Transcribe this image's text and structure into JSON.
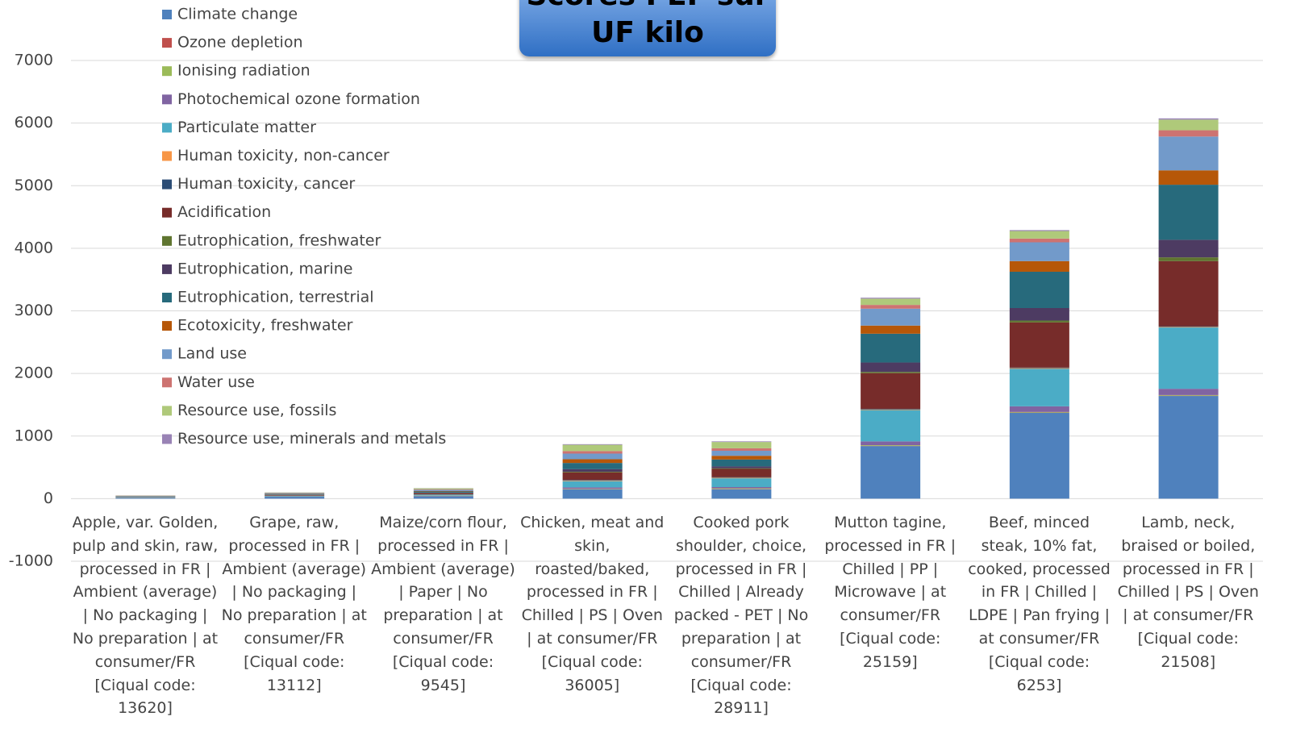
{
  "chart_data": {
    "type": "stacked_bar",
    "title": "Scores PEF sur UF kilo",
    "categories": [
      "Apple, var. Golden, pulp and skin, raw, processed in FR | Ambient (average) | No packaging | No preparation | at consumer/FR [Ciqual code: 13620]",
      "Grape, raw, processed in FR | Ambient (average) | No packaging | No preparation | at consumer/FR [Ciqual code: 13112]",
      "Maize/corn flour, processed in FR | Ambient (average) | Paper | No preparation | at consumer/FR [Ciqual code: 9545]",
      "Chicken, meat and skin, roasted/baked, processed in FR | Chilled | PS | Oven | at consumer/FR [Ciqual code: 36005]",
      "Cooked pork shoulder, choice, processed in FR | Chilled | Already packed - PET | No preparation | at consumer/FR [Ciqual code: 28911]",
      "Mutton tagine, processed in FR | Chilled | PP | Microwave | at consumer/FR [Ciqual code: 25159]",
      "Beef, minced steak, 10% fat, cooked, processed in FR | Chilled | LDPE | Pan frying | at consumer/FR [Ciqual code: 6253]",
      "Lamb, neck, braised or boiled, processed in FR | Chilled | PS | Oven | at consumer/FR [Ciqual code: 21508]"
    ],
    "series": [
      {
        "name": "Climate change",
        "color": "#4f81bd",
        "values": [
          15,
          30,
          40,
          150,
          150,
          840,
          1370,
          1640
        ]
      },
      {
        "name": "Ozone depletion",
        "color": "#c0504d",
        "values": [
          1,
          2,
          3,
          5,
          5,
          5,
          5,
          5
        ]
      },
      {
        "name": "Ionising radiation",
        "color": "#9bbb59",
        "values": [
          2,
          3,
          5,
          5,
          10,
          10,
          10,
          10
        ]
      },
      {
        "name": "Photochemical ozone formation",
        "color": "#8064a2",
        "values": [
          1,
          2,
          3,
          20,
          20,
          60,
          90,
          100
        ]
      },
      {
        "name": "Particulate matter",
        "color": "#4bacc6",
        "values": [
          5,
          8,
          12,
          100,
          140,
          500,
          600,
          980
        ]
      },
      {
        "name": "Human toxicity, non-cancer",
        "color": "#f79646",
        "values": [
          1,
          2,
          3,
          10,
          10,
          10,
          10,
          10
        ]
      },
      {
        "name": "Human toxicity, cancer",
        "color": "#2c4d75",
        "values": [
          1,
          2,
          3,
          10,
          10,
          10,
          10,
          10
        ]
      },
      {
        "name": "Acidification",
        "color": "#772c2a",
        "values": [
          4,
          10,
          18,
          120,
          130,
          570,
          720,
          1040
        ]
      },
      {
        "name": "Eutrophication, freshwater",
        "color": "#5f7530",
        "values": [
          1,
          2,
          3,
          10,
          10,
          20,
          30,
          60
        ]
      },
      {
        "name": "Eutrophication, marine",
        "color": "#4d3b62",
        "values": [
          2,
          4,
          6,
          40,
          30,
          150,
          200,
          280
        ]
      },
      {
        "name": "Eutrophication, terrestrial",
        "color": "#276a7c",
        "values": [
          5,
          10,
          18,
          100,
          110,
          460,
          580,
          880
        ]
      },
      {
        "name": "Ecotoxicity, freshwater",
        "color": "#b65708",
        "values": [
          3,
          5,
          8,
          60,
          60,
          130,
          170,
          230
        ]
      },
      {
        "name": "Land use",
        "color": "#729aca",
        "values": [
          4,
          8,
          18,
          90,
          80,
          270,
          300,
          540
        ]
      },
      {
        "name": "Water use",
        "color": "#cd7371",
        "values": [
          3,
          5,
          10,
          40,
          40,
          60,
          60,
          100
        ]
      },
      {
        "name": "Resource use, fossils",
        "color": "#afc97a",
        "values": [
          3,
          6,
          15,
          100,
          100,
          100,
          120,
          170
        ]
      },
      {
        "name": "Resource use, minerals and metals",
        "color": "#9983b5",
        "values": [
          1,
          1,
          3,
          10,
          10,
          15,
          15,
          20
        ]
      }
    ],
    "ylim": [
      -1000,
      7000
    ],
    "yticks": [
      -1000,
      0,
      1000,
      2000,
      3000,
      4000,
      5000,
      6000,
      7000
    ],
    "grid": true
  }
}
